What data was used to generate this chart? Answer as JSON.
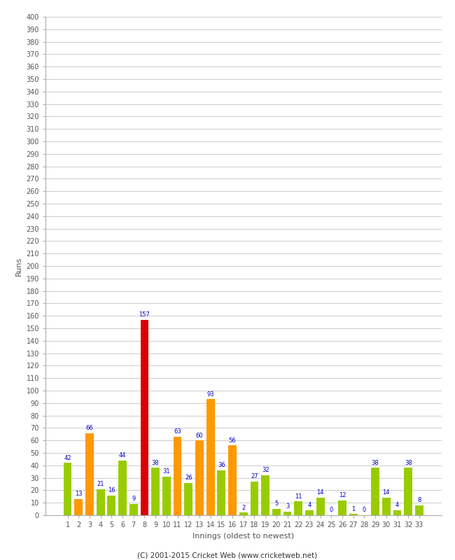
{
  "innings": [
    1,
    2,
    3,
    4,
    5,
    6,
    7,
    8,
    9,
    10,
    11,
    12,
    13,
    14,
    15,
    16,
    17,
    18,
    19,
    20,
    21,
    22,
    23,
    24,
    25,
    26,
    27,
    28,
    29,
    30,
    31,
    32,
    33
  ],
  "values": [
    42,
    13,
    66,
    21,
    16,
    44,
    9,
    157,
    38,
    31,
    63,
    26,
    60,
    93,
    36,
    56,
    2,
    27,
    32,
    5,
    3,
    11,
    4,
    14,
    0,
    12,
    1,
    0,
    38,
    14,
    4,
    38,
    8
  ],
  "colors": [
    "#99cc00",
    "#ff9900",
    "#ff9900",
    "#99cc00",
    "#99cc00",
    "#99cc00",
    "#99cc00",
    "#dd0000",
    "#99cc00",
    "#99cc00",
    "#ff9900",
    "#99cc00",
    "#ff9900",
    "#ff9900",
    "#99cc00",
    "#ff9900",
    "#99cc00",
    "#99cc00",
    "#99cc00",
    "#99cc00",
    "#99cc00",
    "#99cc00",
    "#99cc00",
    "#99cc00",
    "#99cc00",
    "#99cc00",
    "#99cc00",
    "#99cc00",
    "#99cc00",
    "#99cc00",
    "#99cc00",
    "#99cc00",
    "#99cc00"
  ],
  "xlabel": "Innings (oldest to newest)",
  "ylabel": "Runs",
  "ylim": [
    0,
    400
  ],
  "ytick_step": 10,
  "footer": "(C) 2001-2015 Cricket Web (www.cricketweb.net)",
  "label_color": "#0000cc",
  "grid_color": "#cccccc",
  "background_color": "#ffffff",
  "spine_color": "#aaaaaa",
  "tick_color": "#555555"
}
